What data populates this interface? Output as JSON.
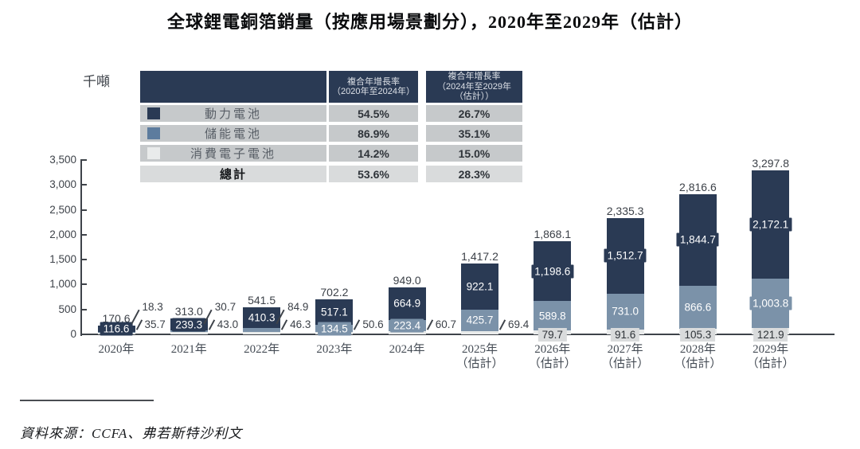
{
  "title": "全球鋰電銅箔銷量（按應用場景劃分），2020年至2029年（估計）",
  "unit_label": "千噸",
  "source": "資料來源：CCFA、弗若斯特沙利文",
  "colors": {
    "power": "#2a3a54",
    "storage_bar": "#7b92a9",
    "storage_swatch": "#5d7c9e",
    "consumer": "#e9ebeb",
    "row_bg": "#c6c9cb",
    "total_row_bg": "#d9dbdc",
    "consumer_label_bg": "#d9dbdc",
    "axis": "#3e434a"
  },
  "legend_table": {
    "header_col1_lines": [
      "複合年增長率",
      "（2020年至2024年）"
    ],
    "header_col2_lines": [
      "複合年增長率",
      "（2024年至2029年",
      "（估計））"
    ],
    "rows": [
      {
        "label": "動力電池",
        "cagr_2020_2024": "54.5%",
        "cagr_2024_2029": "26.7%",
        "swatch": "#2a3a54"
      },
      {
        "label": "儲能電池",
        "cagr_2020_2024": "86.9%",
        "cagr_2024_2029": "35.1%",
        "swatch": "#5d7c9e"
      },
      {
        "label": "消費電子電池",
        "cagr_2020_2024": "14.2%",
        "cagr_2024_2029": "15.0%",
        "swatch": "#e9ebeb"
      }
    ],
    "total_row": {
      "label": "總計",
      "cagr_2020_2024": "53.6%",
      "cagr_2024_2029": "28.3%"
    }
  },
  "chart_data": {
    "type": "bar",
    "stacked": true,
    "title": "全球鋰電銅箔銷量（按應用場景劃分），2020年至2029年（估計）",
    "ylabel": "千噸",
    "ylim": [
      0,
      3500
    ],
    "ytick_step": 500,
    "grid": false,
    "legend_position": "top-left-table",
    "categories": [
      {
        "label": "2020年",
        "sub": ""
      },
      {
        "label": "2021年",
        "sub": ""
      },
      {
        "label": "2022年",
        "sub": ""
      },
      {
        "label": "2023年",
        "sub": ""
      },
      {
        "label": "2024年",
        "sub": ""
      },
      {
        "label": "2025年",
        "sub": "（估計）"
      },
      {
        "label": "2026年",
        "sub": "（估計）"
      },
      {
        "label": "2027年",
        "sub": "（估計）"
      },
      {
        "label": "2028年",
        "sub": "（估計）"
      },
      {
        "label": "2029年",
        "sub": "（估計）"
      }
    ],
    "series": [
      {
        "name": "動力電池",
        "color": "#2a3a54",
        "values": [
          116.6,
          239.3,
          410.3,
          517.1,
          664.9,
          922.1,
          1198.6,
          1512.7,
          1844.7,
          2172.1
        ]
      },
      {
        "name": "儲能電池",
        "color": "#7b92a9",
        "values": [
          18.3,
          30.7,
          84.9,
          134.5,
          223.4,
          425.7,
          589.8,
          731.0,
          866.6,
          1003.8
        ]
      },
      {
        "name": "消費電子電池",
        "color": "#e9ebeb",
        "values": [
          35.7,
          43.0,
          46.3,
          50.6,
          60.7,
          69.4,
          79.7,
          91.6,
          105.3,
          121.9
        ]
      }
    ],
    "totals": [
      170.6,
      313.0,
      541.5,
      702.2,
      949.0,
      1417.2,
      1868.1,
      2335.3,
      2816.6,
      3297.8
    ]
  }
}
